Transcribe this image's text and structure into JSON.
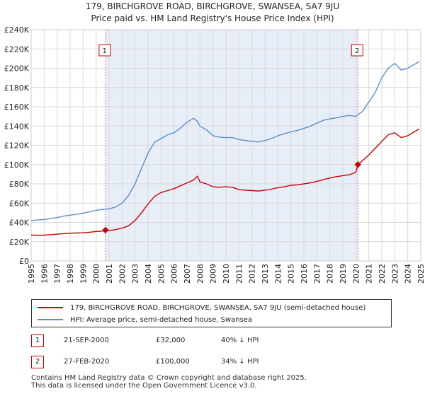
{
  "title_line1": "179, BIRCHGROVE ROAD, BIRCHGROVE, SWANSEA, SA7 9JU",
  "title_line2": "Price paid vs. HM Land Registry's House Price Index (HPI)",
  "colors": {
    "property": "#cc0000",
    "hpi": "#5b8ec7",
    "shade": "#e8eef8",
    "grid": "#d9d9d9",
    "marker_line": "#e07070"
  },
  "chart_data": {
    "type": "line",
    "xlim": [
      1995,
      2025
    ],
    "ylim": [
      0,
      240000
    ],
    "yticks": [
      {
        "value": 0,
        "label": "£0"
      },
      {
        "value": 20000,
        "label": "£20K"
      },
      {
        "value": 40000,
        "label": "£40K"
      },
      {
        "value": 60000,
        "label": "£60K"
      },
      {
        "value": 80000,
        "label": "£80K"
      },
      {
        "value": 100000,
        "label": "£100K"
      },
      {
        "value": 120000,
        "label": "£120K"
      },
      {
        "value": 140000,
        "label": "£140K"
      },
      {
        "value": 160000,
        "label": "£160K"
      },
      {
        "value": 180000,
        "label": "£180K"
      },
      {
        "value": 200000,
        "label": "£200K"
      },
      {
        "value": 220000,
        "label": "£220K"
      },
      {
        "value": 240000,
        "label": "£240K"
      }
    ],
    "xticks": [
      "1995",
      "1996",
      "1997",
      "1998",
      "1999",
      "2000",
      "2001",
      "2002",
      "2003",
      "2004",
      "2005",
      "2006",
      "2007",
      "2008",
      "2009",
      "2010",
      "2011",
      "2012",
      "2013",
      "2014",
      "2015",
      "2016",
      "2017",
      "2018",
      "2019",
      "2020",
      "2021",
      "2022",
      "2023",
      "2024",
      "2025"
    ],
    "shaded_range": [
      2000.72,
      2020.16
    ],
    "series": [
      {
        "name": "179, BIRCHGROVE ROAD, BIRCHGROVE, SWANSEA, SA7 9JU (semi-detached house)",
        "color": "#cc0000",
        "x": [
          1995.0,
          1995.5,
          1996.0,
          1996.5,
          1997.0,
          1997.5,
          1998.0,
          1998.5,
          1999.0,
          1999.5,
          2000.0,
          2000.5,
          2000.72,
          2001.0,
          2001.5,
          2002.0,
          2002.5,
          2003.0,
          2003.5,
          2004.0,
          2004.5,
          2005.0,
          2005.5,
          2006.0,
          2006.5,
          2007.0,
          2007.5,
          2007.8,
          2008.0,
          2008.5,
          2009.0,
          2009.5,
          2010.0,
          2010.5,
          2011.0,
          2011.5,
          2012.0,
          2012.5,
          2013.0,
          2013.5,
          2014.0,
          2014.5,
          2015.0,
          2015.5,
          2016.0,
          2016.5,
          2017.0,
          2017.5,
          2018.0,
          2018.5,
          2019.0,
          2019.5,
          2020.0,
          2020.16,
          2020.5,
          2021.0,
          2021.5,
          2022.0,
          2022.5,
          2023.0,
          2023.5,
          2024.0,
          2024.5,
          2024.9
        ],
        "values": [
          27000,
          26500,
          26800,
          27200,
          27800,
          28300,
          28800,
          29000,
          29200,
          29800,
          30500,
          31000,
          32000,
          31500,
          32500,
          34000,
          36500,
          42000,
          50000,
          59000,
          67000,
          71000,
          73000,
          75000,
          78000,
          81000,
          84000,
          88000,
          82000,
          80000,
          77000,
          76500,
          77000,
          76500,
          74000,
          73500,
          73000,
          72500,
          73500,
          74500,
          76000,
          77000,
          78500,
          79000,
          80000,
          81000,
          82500,
          84500,
          86000,
          87500,
          88500,
          89500,
          92000,
          100000,
          104000,
          110000,
          117000,
          124000,
          131000,
          133000,
          128000,
          130000,
          134000,
          137000
        ]
      },
      {
        "name": "HPI: Average price, semi-detached house, Swansea",
        "color": "#5b8ec7",
        "x": [
          1995.0,
          1995.5,
          1996.0,
          1996.5,
          1997.0,
          1997.5,
          1998.0,
          1998.5,
          1999.0,
          1999.5,
          2000.0,
          2000.5,
          2001.0,
          2001.5,
          2002.0,
          2002.5,
          2003.0,
          2003.5,
          2004.0,
          2004.5,
          2005.0,
          2005.5,
          2006.0,
          2006.5,
          2007.0,
          2007.5,
          2007.8,
          2008.0,
          2008.5,
          2009.0,
          2009.5,
          2010.0,
          2010.5,
          2011.0,
          2011.5,
          2012.0,
          2012.5,
          2013.0,
          2013.5,
          2014.0,
          2014.5,
          2015.0,
          2015.5,
          2016.0,
          2016.5,
          2017.0,
          2017.5,
          2018.0,
          2018.5,
          2019.0,
          2019.5,
          2020.0,
          2020.5,
          2021.0,
          2021.5,
          2022.0,
          2022.5,
          2023.0,
          2023.5,
          2024.0,
          2024.5,
          2024.9
        ],
        "values": [
          42000,
          42500,
          43000,
          44000,
          45000,
          46500,
          47500,
          48500,
          49500,
          51000,
          52500,
          53500,
          54000,
          56000,
          60000,
          68000,
          80000,
          96000,
          112000,
          123000,
          127000,
          131000,
          133000,
          138000,
          144000,
          148000,
          145000,
          140000,
          136000,
          130000,
          128500,
          128000,
          128000,
          126000,
          125000,
          124000,
          123500,
          125000,
          127000,
          130000,
          132000,
          134000,
          135500,
          137500,
          140000,
          143000,
          146000,
          147500,
          148500,
          150000,
          151000,
          150000,
          155000,
          165000,
          175000,
          190000,
          200000,
          205000,
          198000,
          200000,
          204000,
          207000
        ]
      }
    ],
    "sales": [
      {
        "label": "1",
        "x": 2000.72,
        "value": 32000
      },
      {
        "label": "2",
        "x": 2020.16,
        "value": 100000
      }
    ]
  },
  "legend": {
    "property_label": "179, BIRCHGROVE ROAD, BIRCHGROVE, SWANSEA, SA7 9JU (semi-detached house)",
    "hpi_label": "HPI: Average price, semi-detached house, Swansea"
  },
  "sales_table": [
    {
      "marker": "1",
      "date": "21-SEP-2000",
      "price": "£32,000",
      "hpi_delta": "40% ↓ HPI"
    },
    {
      "marker": "2",
      "date": "27-FEB-2020",
      "price": "£100,000",
      "hpi_delta": "34% ↓ HPI"
    }
  ],
  "footer": {
    "line1": "Contains HM Land Registry data © Crown copyright and database right 2025.",
    "line2": "This data is licensed under the Open Government Licence v3.0."
  }
}
